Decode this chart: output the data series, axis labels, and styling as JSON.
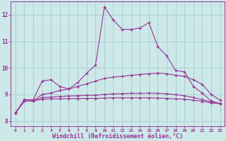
{
  "background_color": "#cce8e8",
  "grid_color": "#aacccc",
  "line_color": "#993399",
  "xlabel": "Windchill (Refroidissement éolien,°C)",
  "xlabel_fontsize": 6,
  "yticks": [
    8,
    9,
    10,
    11,
    12
  ],
  "xticks": [
    0,
    1,
    2,
    3,
    4,
    5,
    6,
    7,
    8,
    9,
    10,
    11,
    12,
    13,
    14,
    15,
    16,
    17,
    18,
    19,
    20,
    21,
    22,
    23
  ],
  "xlim": [
    -0.5,
    23.5
  ],
  "ylim": [
    7.8,
    12.5
  ],
  "series1": [
    8.3,
    8.8,
    8.8,
    9.5,
    9.55,
    9.3,
    9.2,
    9.45,
    9.8,
    10.1,
    12.3,
    11.8,
    11.45,
    11.45,
    11.5,
    11.7,
    10.8,
    10.45,
    9.9,
    9.85,
    9.3,
    9.05,
    8.75,
    8.65
  ],
  "series2": [
    8.3,
    8.75,
    8.75,
    9.0,
    9.05,
    9.15,
    9.2,
    9.3,
    9.4,
    9.5,
    9.6,
    9.65,
    9.68,
    9.72,
    9.75,
    9.78,
    9.8,
    9.78,
    9.72,
    9.68,
    9.55,
    9.38,
    9.0,
    8.78
  ],
  "series3": [
    8.3,
    8.75,
    8.75,
    8.88,
    8.9,
    8.92,
    8.94,
    8.95,
    8.96,
    8.97,
    9.0,
    9.02,
    9.03,
    9.04,
    9.04,
    9.05,
    9.04,
    9.02,
    8.99,
    8.95,
    8.88,
    8.8,
    8.72,
    8.65
  ],
  "series4": [
    8.3,
    8.75,
    8.75,
    8.82,
    8.83,
    8.83,
    8.84,
    8.84,
    8.85,
    8.85,
    8.86,
    8.87,
    8.87,
    8.87,
    8.87,
    8.87,
    8.86,
    8.85,
    8.83,
    8.82,
    8.78,
    8.74,
    8.68,
    8.65
  ]
}
